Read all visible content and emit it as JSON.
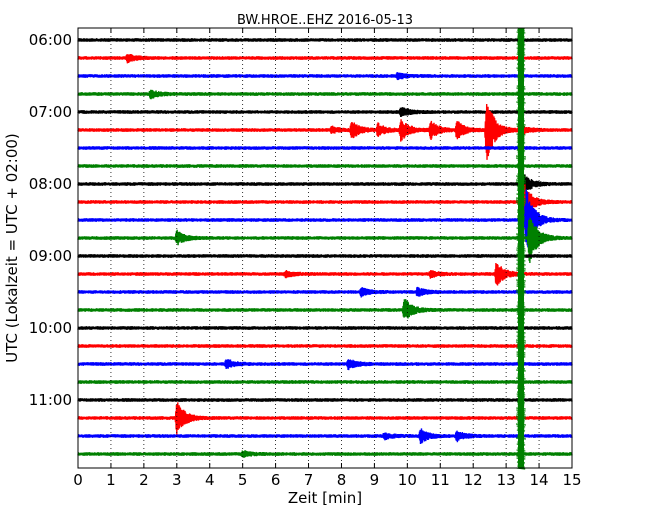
{
  "chart_data": {
    "type": "line",
    "title": "BW.HROE..EHZ 2016-05-13",
    "xlabel": "Zeit  [min]",
    "ylabel": "UTC (Lokalzeit = UTC + 02:00)",
    "xlim": [
      0,
      15
    ],
    "x_ticks": [
      "0",
      "1",
      "2",
      "3",
      "4",
      "5",
      "6",
      "7",
      "8",
      "9",
      "10",
      "11",
      "12",
      "13",
      "14",
      "15"
    ],
    "y_ticks": [
      "06:00",
      "07:00",
      "08:00",
      "09:00",
      "10:00",
      "11:00"
    ],
    "grid": true,
    "trace_interval_minutes": 15,
    "trace_colors": [
      "#000000",
      "#ff0000",
      "#0000ff",
      "#008000"
    ],
    "traces": [
      {
        "start": "06:00",
        "events": []
      },
      {
        "start": "06:15",
        "events": [
          {
            "t": 1.5,
            "amp": 4
          }
        ]
      },
      {
        "start": "06:30",
        "events": [
          {
            "t": 9.7,
            "amp": 3
          }
        ]
      },
      {
        "start": "06:45",
        "events": [
          {
            "t": 2.2,
            "amp": 4
          }
        ]
      },
      {
        "start": "07:00",
        "events": [
          {
            "t": 9.8,
            "amp": 5
          }
        ]
      },
      {
        "start": "07:15",
        "events": [
          {
            "t": 7.7,
            "amp": 3
          },
          {
            "t": 8.3,
            "amp": 9
          },
          {
            "t": 9.1,
            "amp": 6
          },
          {
            "t": 9.8,
            "amp": 11
          },
          {
            "t": 10.7,
            "amp": 9
          },
          {
            "t": 11.5,
            "amp": 9
          },
          {
            "t": 12.4,
            "amp": 34
          },
          {
            "t": 13.4,
            "amp": 5
          }
        ]
      },
      {
        "start": "07:30",
        "events": []
      },
      {
        "start": "07:45",
        "events": []
      },
      {
        "start": "08:00",
        "events": [
          {
            "t": 13.45,
            "amp": 14
          }
        ]
      },
      {
        "start": "08:15",
        "events": [
          {
            "t": 13.5,
            "amp": 22
          }
        ]
      },
      {
        "start": "08:30",
        "events": [
          {
            "t": 13.6,
            "amp": 34
          }
        ]
      },
      {
        "start": "08:45",
        "events": [
          {
            "t": 3.0,
            "amp": 7
          },
          {
            "t": 13.7,
            "amp": 26
          }
        ]
      },
      {
        "start": "09:00",
        "events": []
      },
      {
        "start": "09:15",
        "events": [
          {
            "t": 6.3,
            "amp": 3
          },
          {
            "t": 10.7,
            "amp": 3
          },
          {
            "t": 12.7,
            "amp": 12
          }
        ]
      },
      {
        "start": "09:30",
        "events": [
          {
            "t": 8.6,
            "amp": 4
          },
          {
            "t": 10.3,
            "amp": 4
          }
        ]
      },
      {
        "start": "09:45",
        "events": [
          {
            "t": 9.9,
            "amp": 12
          }
        ]
      },
      {
        "start": "10:00",
        "events": []
      },
      {
        "start": "10:15",
        "events": []
      },
      {
        "start": "10:30",
        "events": [
          {
            "t": 4.5,
            "amp": 5
          },
          {
            "t": 8.2,
            "amp": 5
          }
        ]
      },
      {
        "start": "10:45",
        "events": []
      },
      {
        "start": "11:00",
        "events": []
      },
      {
        "start": "11:15",
        "events": [
          {
            "t": 3.0,
            "amp": 17
          }
        ]
      },
      {
        "start": "11:30",
        "events": [
          {
            "t": 9.3,
            "amp": 3
          },
          {
            "t": 10.4,
            "amp": 7
          },
          {
            "t": 11.5,
            "amp": 5
          }
        ]
      },
      {
        "start": "11:45",
        "events": [
          {
            "t": 5.0,
            "amp": 3
          }
        ]
      }
    ],
    "long_event": {
      "t": 13.45,
      "color": "#008000",
      "note": "continuous spike across all traces"
    }
  }
}
